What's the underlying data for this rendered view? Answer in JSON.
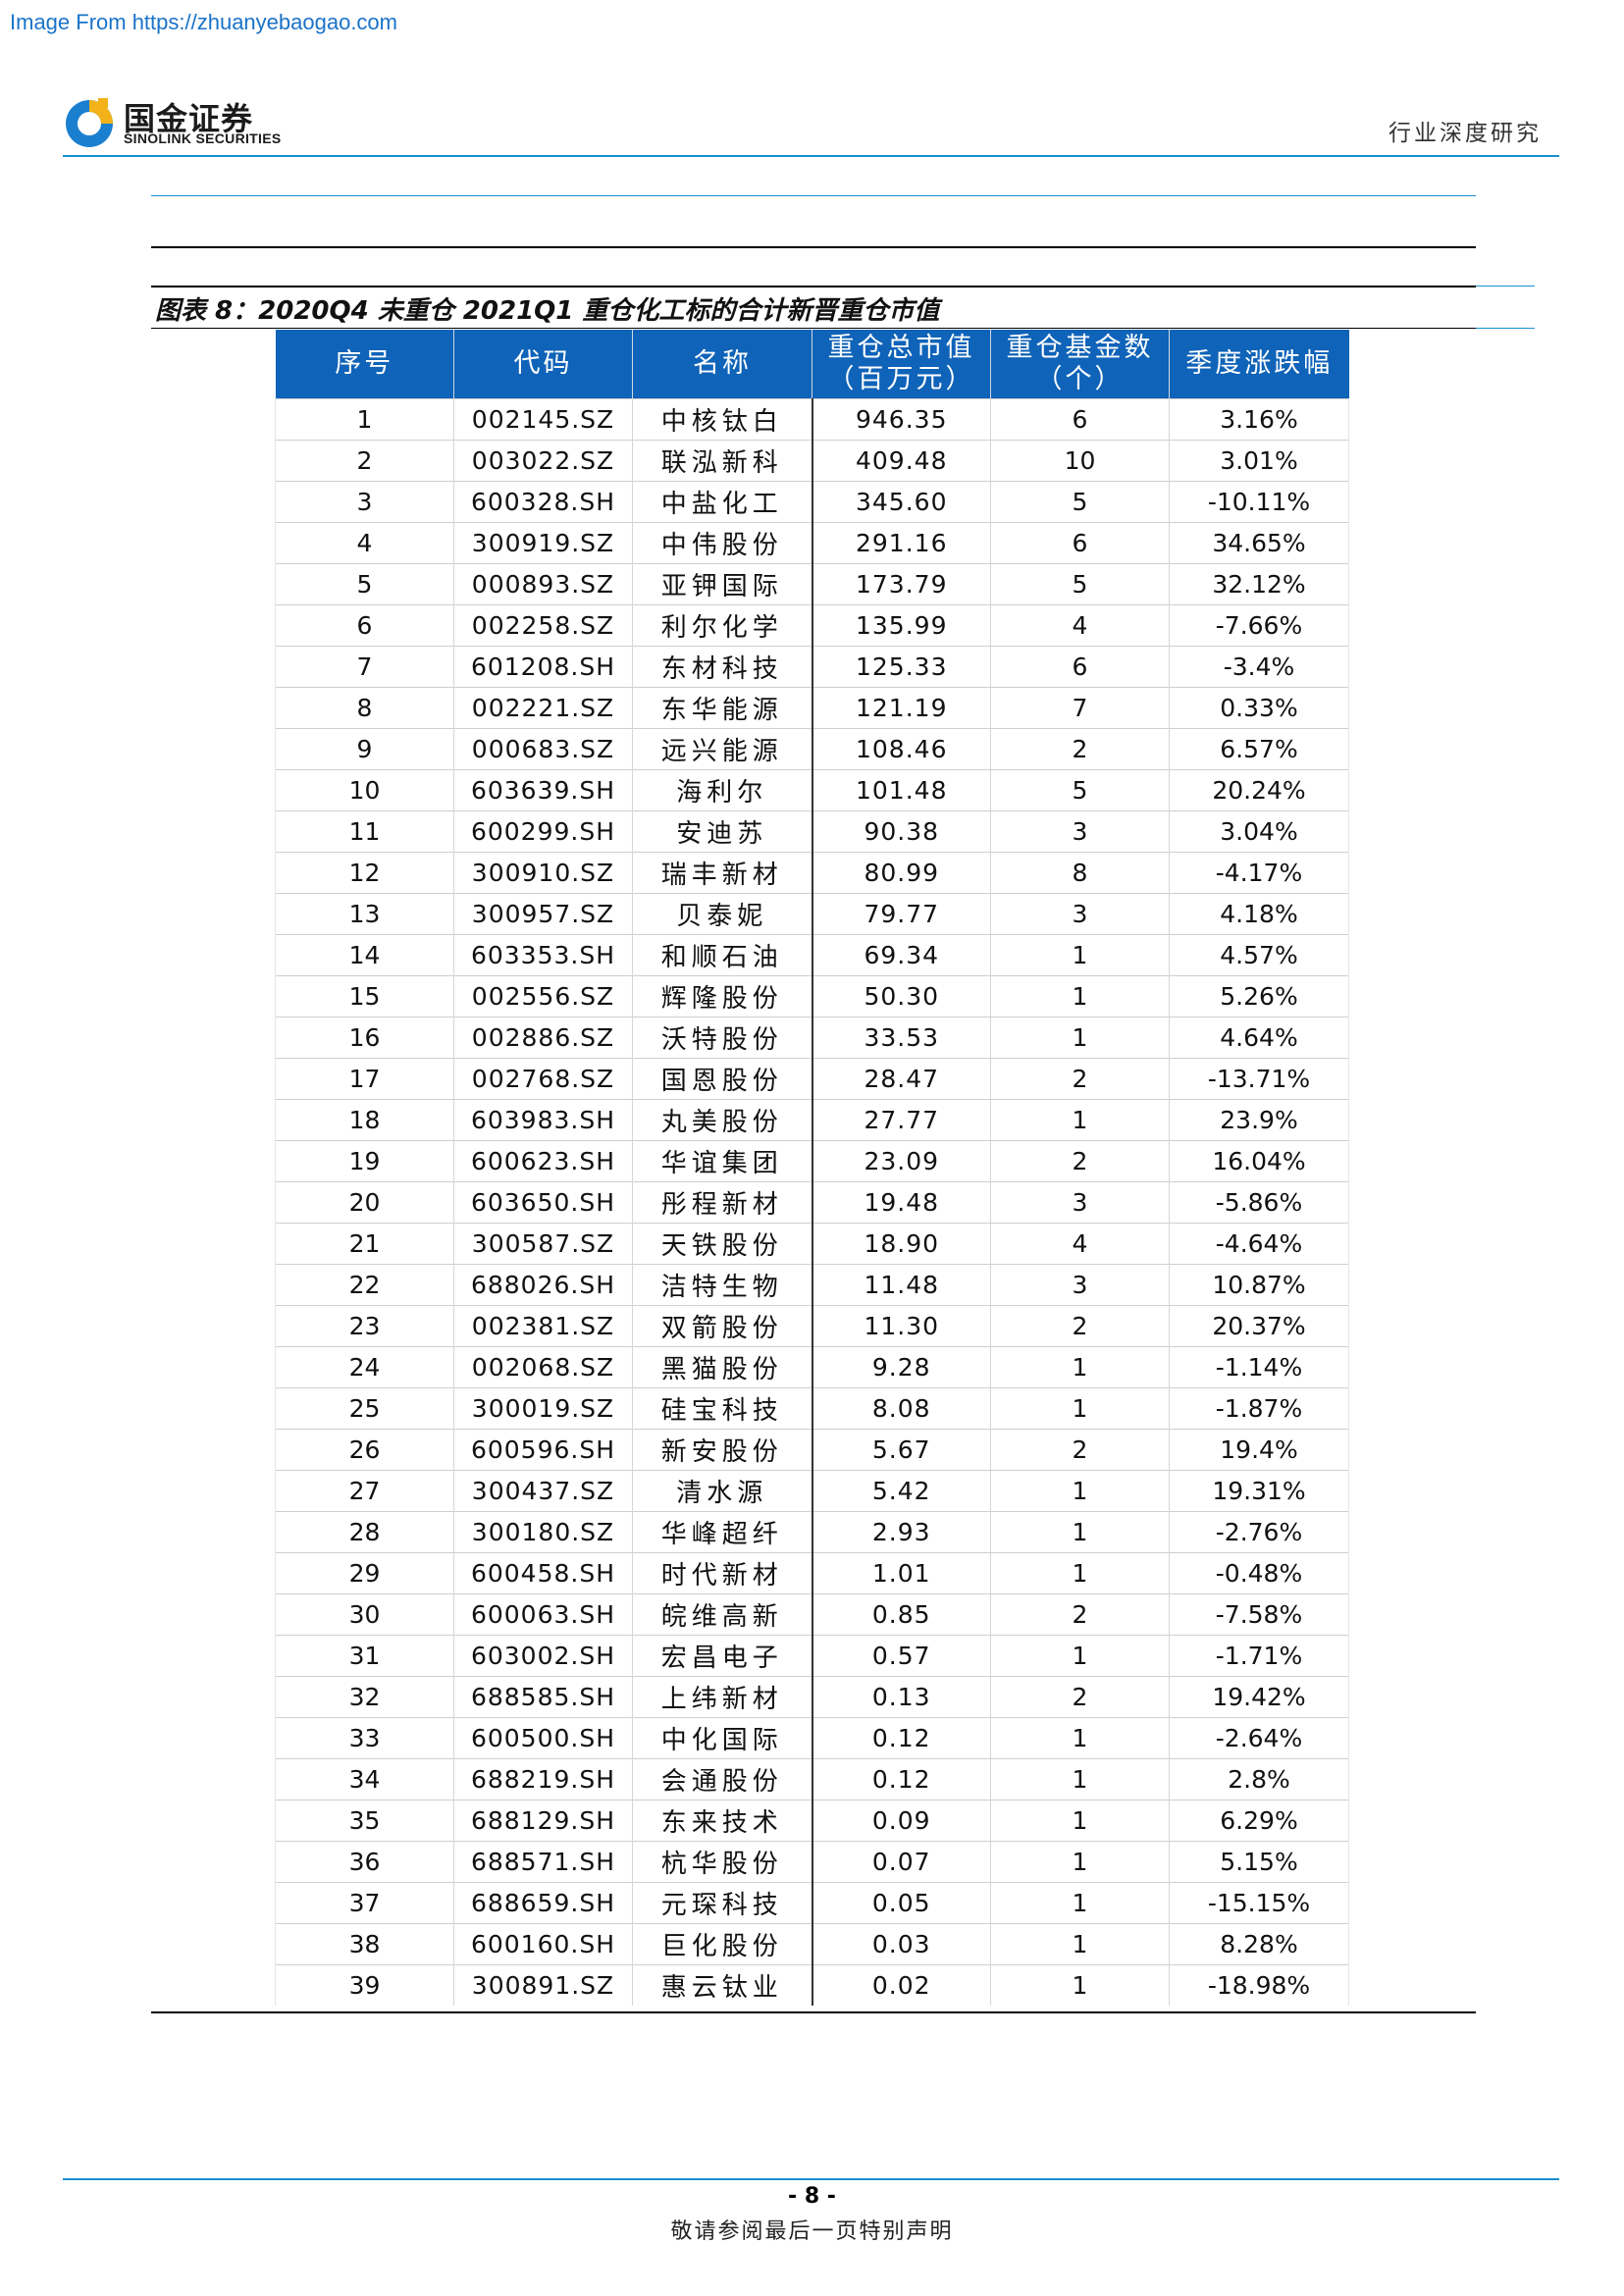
{
  "watermark": "Image From https://zhuanyebaogao.com",
  "header": {
    "logo_cn": "国金证券",
    "logo_en": "SINOLINK SECURITIES",
    "section": "行业深度研究"
  },
  "figure": {
    "caption": "图表 8：2020Q4 未重仓 2021Q1 重仓化工标的合计新晋重仓市值",
    "columns": [
      "序号",
      "代码",
      "名称",
      "重仓总市值（百万元）",
      "重仓基金数（个）",
      "季度涨跌幅"
    ],
    "rows": [
      [
        "1",
        "002145.SZ",
        "中核钛白",
        "946.35",
        "6",
        "3.16%"
      ],
      [
        "2",
        "003022.SZ",
        "联泓新科",
        "409.48",
        "10",
        "3.01%"
      ],
      [
        "3",
        "600328.SH",
        "中盐化工",
        "345.60",
        "5",
        "-10.11%"
      ],
      [
        "4",
        "300919.SZ",
        "中伟股份",
        "291.16",
        "6",
        "34.65%"
      ],
      [
        "5",
        "000893.SZ",
        "亚钾国际",
        "173.79",
        "5",
        "32.12%"
      ],
      [
        "6",
        "002258.SZ",
        "利尔化学",
        "135.99",
        "4",
        "-7.66%"
      ],
      [
        "7",
        "601208.SH",
        "东材科技",
        "125.33",
        "6",
        "-3.4%"
      ],
      [
        "8",
        "002221.SZ",
        "东华能源",
        "121.19",
        "7",
        "0.33%"
      ],
      [
        "9",
        "000683.SZ",
        "远兴能源",
        "108.46",
        "2",
        "6.57%"
      ],
      [
        "10",
        "603639.SH",
        "海利尔",
        "101.48",
        "5",
        "20.24%"
      ],
      [
        "11",
        "600299.SH",
        "安迪苏",
        "90.38",
        "3",
        "3.04%"
      ],
      [
        "12",
        "300910.SZ",
        "瑞丰新材",
        "80.99",
        "8",
        "-4.17%"
      ],
      [
        "13",
        "300957.SZ",
        "贝泰妮",
        "79.77",
        "3",
        "4.18%"
      ],
      [
        "14",
        "603353.SH",
        "和顺石油",
        "69.34",
        "1",
        "4.57%"
      ],
      [
        "15",
        "002556.SZ",
        "辉隆股份",
        "50.30",
        "1",
        "5.26%"
      ],
      [
        "16",
        "002886.SZ",
        "沃特股份",
        "33.53",
        "1",
        "4.64%"
      ],
      [
        "17",
        "002768.SZ",
        "国恩股份",
        "28.47",
        "2",
        "-13.71%"
      ],
      [
        "18",
        "603983.SH",
        "丸美股份",
        "27.77",
        "1",
        "23.9%"
      ],
      [
        "19",
        "600623.SH",
        "华谊集团",
        "23.09",
        "2",
        "16.04%"
      ],
      [
        "20",
        "603650.SH",
        "彤程新材",
        "19.48",
        "3",
        "-5.86%"
      ],
      [
        "21",
        "300587.SZ",
        "天铁股份",
        "18.90",
        "4",
        "-4.64%"
      ],
      [
        "22",
        "688026.SH",
        "洁特生物",
        "11.48",
        "3",
        "10.87%"
      ],
      [
        "23",
        "002381.SZ",
        "双箭股份",
        "11.30",
        "2",
        "20.37%"
      ],
      [
        "24",
        "002068.SZ",
        "黑猫股份",
        "9.28",
        "1",
        "-1.14%"
      ],
      [
        "25",
        "300019.SZ",
        "硅宝科技",
        "8.08",
        "1",
        "-1.87%"
      ],
      [
        "26",
        "600596.SH",
        "新安股份",
        "5.67",
        "2",
        "19.4%"
      ],
      [
        "27",
        "300437.SZ",
        "清水源",
        "5.42",
        "1",
        "19.31%"
      ],
      [
        "28",
        "300180.SZ",
        "华峰超纤",
        "2.93",
        "1",
        "-2.76%"
      ],
      [
        "29",
        "600458.SH",
        "时代新材",
        "1.01",
        "1",
        "-0.48%"
      ],
      [
        "30",
        "600063.SH",
        "皖维高新",
        "0.85",
        "2",
        "-7.58%"
      ],
      [
        "31",
        "603002.SH",
        "宏昌电子",
        "0.57",
        "1",
        "-1.71%"
      ],
      [
        "32",
        "688585.SH",
        "上纬新材",
        "0.13",
        "2",
        "19.42%"
      ],
      [
        "33",
        "600500.SH",
        "中化国际",
        "0.12",
        "1",
        "-2.64%"
      ],
      [
        "34",
        "688219.SH",
        "会通股份",
        "0.12",
        "1",
        "2.8%"
      ],
      [
        "35",
        "688129.SH",
        "东来技术",
        "0.09",
        "1",
        "6.29%"
      ],
      [
        "36",
        "688571.SH",
        "杭华股份",
        "0.07",
        "1",
        "5.15%"
      ],
      [
        "37",
        "688659.SH",
        "元琛科技",
        "0.05",
        "1",
        "-15.15%"
      ],
      [
        "38",
        "600160.SH",
        "巨化股份",
        "0.03",
        "1",
        "8.28%"
      ],
      [
        "39",
        "300891.SZ",
        "惠云钛业",
        "0.02",
        "1",
        "-18.98%"
      ]
    ]
  },
  "footer": {
    "page": "- 8 -",
    "note": "敬请参阅最后一页特别声明"
  },
  "colors": {
    "header_bg": "#0f63b8",
    "rule_blue": "#1a8fd0",
    "logo_blue": "#1a7fcf",
    "logo_yellow": "#f3b21a"
  },
  "icons": [
    "sinolink-logo-icon"
  ]
}
